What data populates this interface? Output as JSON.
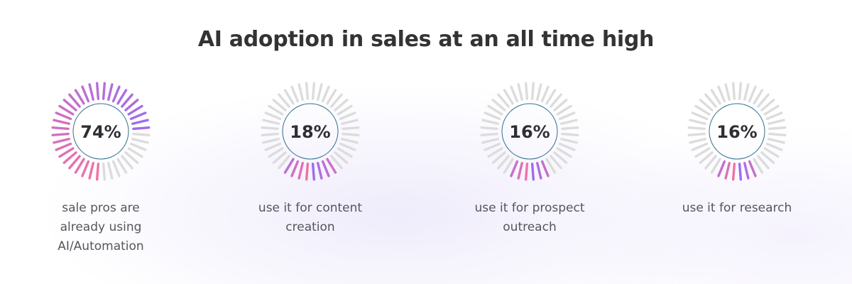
{
  "colors": {
    "inactive": "#dcdcdc",
    "gradient_start": "#9b6cf2",
    "gradient_end": "#f072a4",
    "inner_ring": "#2f6f8f"
  },
  "chart_data": {
    "type": "radial-progress",
    "title": "AI adoption in sales at an all time high",
    "segments_per_ring": 40,
    "series": [
      {
        "value": 74,
        "value_label": "74%",
        "caption": "sale pros are already using AI/Automation"
      },
      {
        "value": 18,
        "value_label": "18%",
        "caption": "use it for content creation"
      },
      {
        "value": 16,
        "value_label": "16%",
        "caption": "use it for prospect outreach"
      },
      {
        "value": 16,
        "value_label": "16%",
        "caption": "use it for research"
      }
    ]
  }
}
